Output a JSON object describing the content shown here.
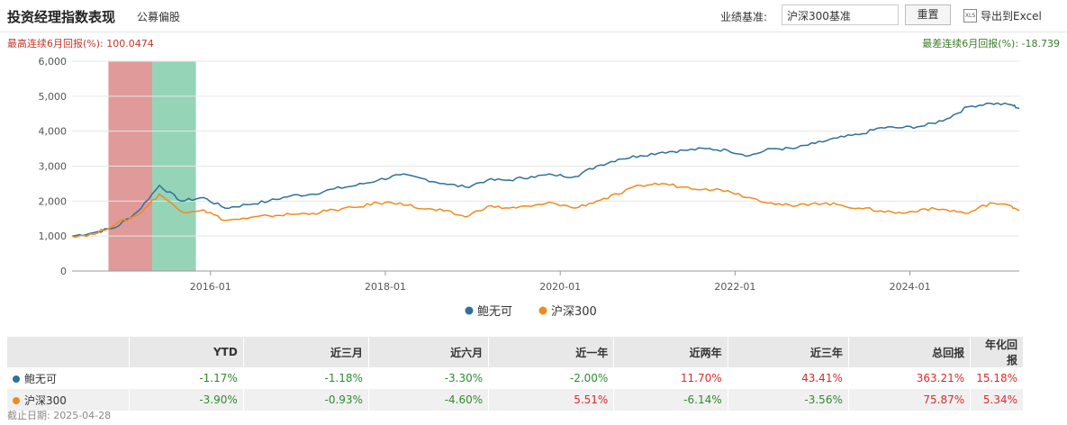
{
  "header": {
    "title": "投资经理指数表现",
    "subtitle": "公募偏股",
    "benchmark_label": "业绩基准:",
    "benchmark_value": "沪深300基准",
    "reset_label": "重置",
    "export_icon_text": "XLS",
    "export_label": "导出到Excel"
  },
  "stats": {
    "best": "最高连续6月回报(%): 100.0474",
    "worst": "最差连续6月回报(%): -18.739"
  },
  "colors": {
    "series1": "#2e7199",
    "series2": "#f08a1c",
    "band_red": "#e09a9a",
    "band_green": "#96d4b8"
  },
  "chart_data": {
    "type": "line",
    "x_ticks": [
      "2016-01",
      "2018-01",
      "2020-01",
      "2022-01",
      "2024-01"
    ],
    "x_range": [
      "2014-06",
      "2025-04"
    ],
    "ylim": [
      0,
      6000
    ],
    "y_ticks": [
      0,
      1000,
      2000,
      3000,
      4000,
      5000,
      6000
    ],
    "y_tick_labels": [
      "0",
      "1,000",
      "2,000",
      "3,000",
      "4,000",
      "5,000",
      "6,000"
    ],
    "grid": true,
    "legend": "bottom-center",
    "highlight_bands": [
      {
        "label": "best",
        "start": "2014-11",
        "end": "2015-05",
        "color": "red"
      },
      {
        "label": "worst",
        "start": "2015-05",
        "end": "2015-11",
        "color": "green"
      }
    ],
    "dates": [
      "2014-06",
      "2014-09",
      "2014-12",
      "2015-03",
      "2015-06",
      "2015-09",
      "2015-12",
      "2016-03",
      "2016-06",
      "2016-09",
      "2016-12",
      "2017-03",
      "2017-06",
      "2017-09",
      "2017-12",
      "2018-03",
      "2018-06",
      "2018-09",
      "2018-12",
      "2019-03",
      "2019-06",
      "2019-09",
      "2019-12",
      "2020-03",
      "2020-06",
      "2020-09",
      "2020-12",
      "2021-03",
      "2021-06",
      "2021-09",
      "2021-12",
      "2022-03",
      "2022-06",
      "2022-09",
      "2022-12",
      "2023-03",
      "2023-06",
      "2023-09",
      "2023-12",
      "2024-03",
      "2024-06",
      "2024-09",
      "2024-12",
      "2025-03",
      "2025-04"
    ],
    "series": [
      {
        "name": "鲍无可",
        "values": [
          1000,
          1100,
          1250,
          1700,
          2450,
          2000,
          2100,
          1800,
          1900,
          2000,
          2150,
          2200,
          2350,
          2450,
          2600,
          2750,
          2650,
          2500,
          2400,
          2600,
          2600,
          2700,
          2750,
          2700,
          3000,
          3200,
          3300,
          3400,
          3450,
          3500,
          3450,
          3300,
          3500,
          3500,
          3650,
          3800,
          3900,
          4100,
          4100,
          4150,
          4350,
          4700,
          4800,
          4750,
          4650
        ]
      },
      {
        "name": "沪深300",
        "values": [
          1000,
          1050,
          1350,
          1600,
          2200,
          1700,
          1750,
          1450,
          1500,
          1580,
          1620,
          1650,
          1750,
          1820,
          1950,
          1950,
          1780,
          1720,
          1550,
          1850,
          1800,
          1850,
          1950,
          1800,
          2000,
          2200,
          2450,
          2500,
          2400,
          2350,
          2300,
          2100,
          1950,
          1850,
          1950,
          1900,
          1800,
          1720,
          1650,
          1780,
          1750,
          1650,
          1950,
          1850,
          1750
        ]
      }
    ]
  },
  "table": {
    "headers": [
      "",
      "YTD",
      "近三月",
      "近六月",
      "近一年",
      "近两年",
      "近三年",
      "总回报",
      "年化回报"
    ],
    "rows": [
      {
        "name": "鲍无可",
        "values": [
          "-1.17%",
          "-1.18%",
          "-3.30%",
          "-2.00%",
          "11.70%",
          "43.41%",
          "363.21%",
          "15.18%"
        ]
      },
      {
        "name": "沪深300",
        "values": [
          "-3.90%",
          "-0.93%",
          "-4.60%",
          "5.51%",
          "-6.14%",
          "-3.56%",
          "75.87%",
          "5.34%"
        ]
      }
    ]
  },
  "footer": "截止日期: 2025-04-28"
}
